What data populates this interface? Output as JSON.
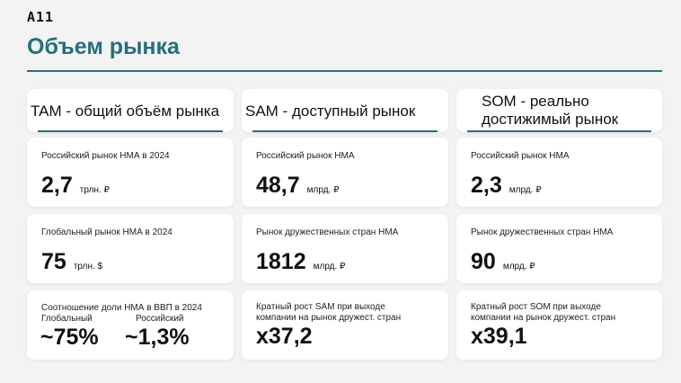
{
  "logo": "A11",
  "title": "Объем рынка",
  "columns": [
    {
      "heading": "TAM - общий объём рынка",
      "cards": [
        {
          "label": "Российский рынок НМА в 2024",
          "value": "2,7",
          "unit": "трлн. ₽"
        },
        {
          "label": "Глобальный рынок НМА в 2024",
          "value": "75",
          "unit": "трлн. $"
        },
        {
          "label": "Соотношение доли НМА в ВВП в 2024",
          "sub_left": "Глобальный",
          "sub_right": "Российский",
          "value_left": "~75%",
          "value_right": "~1,3%"
        }
      ]
    },
    {
      "heading": "SAM - доступный рынок",
      "cards": [
        {
          "label": "Российский рынок НМА",
          "value": "48,7",
          "unit": "млрд. ₽"
        },
        {
          "label": "Рынок дружественных стран НМА",
          "value": "1812",
          "unit": "млрд. ₽"
        },
        {
          "label": "Кратный рост SAM при выходе компании на рынок дружест. стран",
          "value": "x37,2"
        }
      ]
    },
    {
      "heading": "SOM - реально достижимый рынок",
      "cards": [
        {
          "label": "Российский рынок НМА",
          "value": "2,3",
          "unit": "млрд. ₽"
        },
        {
          "label": "Рынок дружественных стран НМА",
          "value": "90",
          "unit": "млрд. ₽"
        },
        {
          "label": "Кратный рост SOM при выходе компании на рынок дружест. стран",
          "value": "x39,1"
        }
      ]
    }
  ],
  "colors": {
    "accent": "#256f7a",
    "background": "#f3f3f4",
    "card": "#ffffff"
  }
}
